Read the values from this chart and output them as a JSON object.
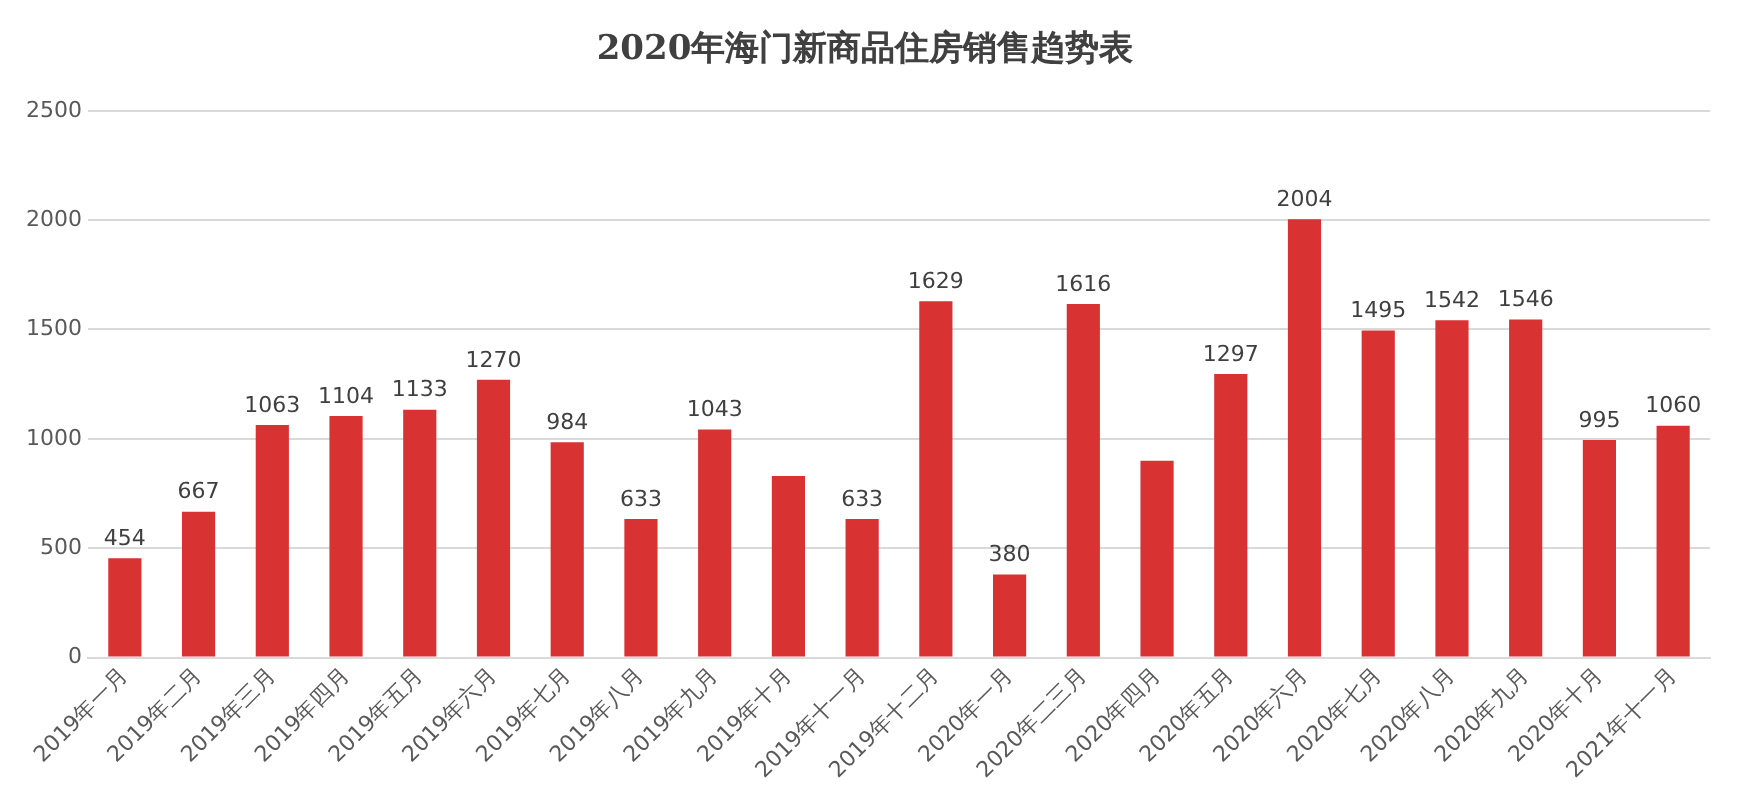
{
  "chart_data": {
    "type": "bar",
    "title": "2020年海门新商品住房销售趋势表",
    "categories": [
      "2019年一月",
      "2019年二月",
      "2019年三月",
      "2019年四月",
      "2019年五月",
      "2019年六月",
      "2019年七月",
      "2019年八月",
      "2019年九月",
      "2019年十月",
      "2019年十一月",
      "2019年十二月",
      "2020年一月",
      "2020年二三月",
      "2020年四月",
      "2020年五月",
      "2020年六月",
      "2020年七月",
      "2020年八月",
      "2020年九月",
      "2020年十月",
      "2021年十一月"
    ],
    "values": [
      454,
      667,
      1063,
      1104,
      1133,
      1270,
      984,
      633,
      1043,
      830,
      633,
      1629,
      380,
      1616,
      900,
      1297,
      2004,
      1495,
      1542,
      1546,
      995,
      1060
    ],
    "value_labels": [
      "454",
      "667",
      "1063",
      "1104",
      "1133",
      "1270",
      "984",
      "633",
      "1043",
      null,
      "633",
      "1629",
      "380",
      "1616",
      null,
      "1297",
      "2004",
      "1495",
      "1542",
      "1546",
      "995",
      "1060"
    ],
    "color": "#d83232",
    "ylim": [
      0,
      2500
    ],
    "yticks": [
      0,
      500,
      1000,
      1500,
      2000,
      2500
    ],
    "grid": "y",
    "legend": false
  }
}
